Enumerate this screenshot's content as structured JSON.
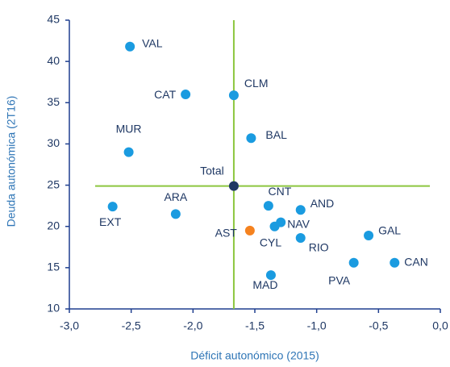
{
  "chart_data": {
    "type": "scatter",
    "x_label": "Déficit autonómico (2015)",
    "y_label": "Deuda autonómica (2T16)",
    "labels": [
      "VAL",
      "CAT",
      "CLM",
      "MUR",
      "BAL",
      "Total",
      "EXT",
      "ARA",
      "CNT",
      "AND",
      "NAV",
      "CYL",
      "AST",
      "RIO",
      "GAL",
      "MAD",
      "PVA",
      "CAN"
    ],
    "x": [
      -2.51,
      -2.06,
      -1.67,
      -2.52,
      -1.53,
      -1.67,
      -2.65,
      -2.14,
      -1.39,
      -1.13,
      -1.29,
      -1.34,
      -1.54,
      -1.13,
      -0.58,
      -1.37,
      -0.7,
      -0.37
    ],
    "y": [
      41.8,
      36.0,
      35.9,
      29.0,
      30.7,
      24.9,
      22.4,
      21.5,
      22.5,
      22.0,
      20.5,
      20.0,
      19.5,
      18.6,
      18.9,
      14.1,
      15.6,
      15.6
    ],
    "colors": [
      "#1a9be0",
      "#1a9be0",
      "#1a9be0",
      "#1a9be0",
      "#1a9be0",
      "#1f3864",
      "#1a9be0",
      "#1a9be0",
      "#1a9be0",
      "#1a9be0",
      "#1a9be0",
      "#1a9be0",
      "#f5821f",
      "#1a9be0",
      "#1a9be0",
      "#1a9be0",
      "#1a9be0",
      "#1a9be0"
    ],
    "reference_color": "#8cc63f",
    "xlim": [
      -3,
      0
    ],
    "ylim": [
      10,
      45
    ],
    "xticks": [
      {
        "value": -3,
        "label": "-3,0"
      },
      {
        "value": -2.5,
        "label": "-2,5"
      },
      {
        "value": -2,
        "label": "-2,0"
      },
      {
        "value": -1.5,
        "label": "-1,5"
      },
      {
        "value": -1,
        "label": "-1,0"
      },
      {
        "value": -0.5,
        "label": "-0,5"
      },
      {
        "value": 0,
        "label": "0,0"
      }
    ],
    "yticks": [
      10,
      15,
      20,
      25,
      30,
      35,
      40,
      45
    ],
    "grid": false
  }
}
